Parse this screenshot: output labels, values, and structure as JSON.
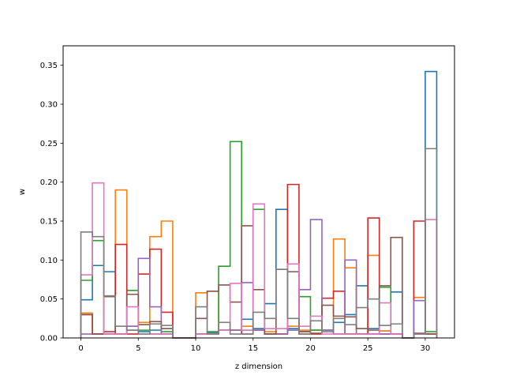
{
  "chart_data": {
    "type": "step-histogram",
    "xlabel": "z dimension",
    "ylabel": "w",
    "xlim": [
      -1.55,
      32.55
    ],
    "ylim": [
      0,
      0.375
    ],
    "x_ticks": [
      0,
      5,
      10,
      15,
      20,
      25,
      30
    ],
    "y_ticks": [
      0.0,
      0.05,
      0.1,
      0.15,
      0.2,
      0.25,
      0.3,
      0.35
    ],
    "bin_edges": [
      0,
      1,
      2,
      3,
      4,
      5,
      6,
      7,
      8,
      9,
      10,
      11,
      12,
      13,
      14,
      15,
      16,
      17,
      18,
      19,
      20,
      21,
      22,
      23,
      24,
      25,
      26,
      27,
      28,
      29,
      30,
      31
    ],
    "series": [
      {
        "color": "#1f77b4",
        "values": [
          0.049,
          0.093,
          0.085,
          0.005,
          0.01,
          0.008,
          0.01,
          0.005,
          0,
          0,
          0.005,
          0.007,
          0.01,
          0.01,
          0.024,
          0.012,
          0.044,
          0.165,
          0.012,
          0.008,
          0.01,
          0.01,
          0.02,
          0.03,
          0.067,
          0.012,
          0.009,
          0.059,
          0,
          0.005,
          0.342
        ]
      },
      {
        "color": "#ff7f0e",
        "values": [
          0.032,
          0.005,
          0.005,
          0.19,
          0.015,
          0.02,
          0.13,
          0.15,
          0,
          0,
          0.058,
          0.06,
          0.01,
          0.01,
          0.015,
          0.01,
          0.008,
          0.005,
          0.015,
          0.01,
          0.01,
          0.01,
          0.127,
          0.09,
          0.005,
          0.106,
          0.009,
          0.005,
          0,
          0.052,
          0.005
        ]
      },
      {
        "color": "#2ca02c",
        "values": [
          0.074,
          0.125,
          0.005,
          0.005,
          0.061,
          0.01,
          0.005,
          0.008,
          0,
          0,
          0.005,
          0.008,
          0.092,
          0.252,
          0.01,
          0.165,
          0.005,
          0.005,
          0.01,
          0.053,
          0.01,
          0.01,
          0.005,
          0.005,
          0.005,
          0.005,
          0.065,
          0.005,
          0,
          0.005,
          0.008
        ]
      },
      {
        "color": "#d62728",
        "values": [
          0.03,
          0.005,
          0.008,
          0.12,
          0.005,
          0.082,
          0.114,
          0.033,
          0,
          0,
          0.005,
          0.005,
          0.01,
          0.01,
          0.005,
          0.01,
          0.005,
          0.005,
          0.197,
          0.005,
          0.005,
          0.051,
          0.06,
          0.005,
          0.005,
          0.154,
          0.005,
          0.005,
          0,
          0.15,
          0.005
        ]
      },
      {
        "color": "#9467bd",
        "values": [
          0.005,
          0.005,
          0.005,
          0.005,
          0.015,
          0.102,
          0.04,
          0.005,
          0,
          0,
          0.005,
          0.005,
          0.01,
          0.01,
          0.071,
          0.01,
          0.005,
          0.005,
          0.01,
          0.062,
          0.152,
          0.01,
          0.005,
          0.1,
          0.005,
          0.005,
          0.005,
          0.005,
          0,
          0.048,
          0.005
        ]
      },
      {
        "color": "#8c564b",
        "values": [
          0.03,
          0.005,
          0.053,
          0.005,
          0.056,
          0.017,
          0.021,
          0.012,
          0,
          0,
          0.025,
          0.06,
          0.068,
          0.046,
          0.144,
          0.062,
          0.005,
          0.088,
          0.085,
          0.008,
          0.006,
          0.042,
          0.028,
          0.027,
          0.012,
          0.01,
          0.067,
          0.129,
          0,
          0.006,
          0.005
        ]
      },
      {
        "color": "#e377c2",
        "values": [
          0.081,
          0.199,
          0.005,
          0.005,
          0.04,
          0.005,
          0.005,
          0.005,
          0,
          0,
          0.005,
          0.005,
          0.01,
          0.07,
          0.01,
          0.172,
          0.012,
          0.012,
          0.095,
          0.015,
          0.028,
          0.005,
          0.005,
          0.005,
          0.005,
          0.005,
          0.045,
          0.005,
          0,
          0.005,
          0.152
        ]
      },
      {
        "color": "#7f7f7f",
        "values": [
          0.136,
          0.13,
          0.054,
          0.015,
          0.01,
          0.005,
          0.018,
          0.016,
          0,
          0,
          0.04,
          0.005,
          0.02,
          0.005,
          0.005,
          0.033,
          0.025,
          0.088,
          0.025,
          0.005,
          0.022,
          0.008,
          0.025,
          0.017,
          0.039,
          0.05,
          0.016,
          0.018,
          0,
          0.005,
          0.243
        ]
      }
    ]
  }
}
